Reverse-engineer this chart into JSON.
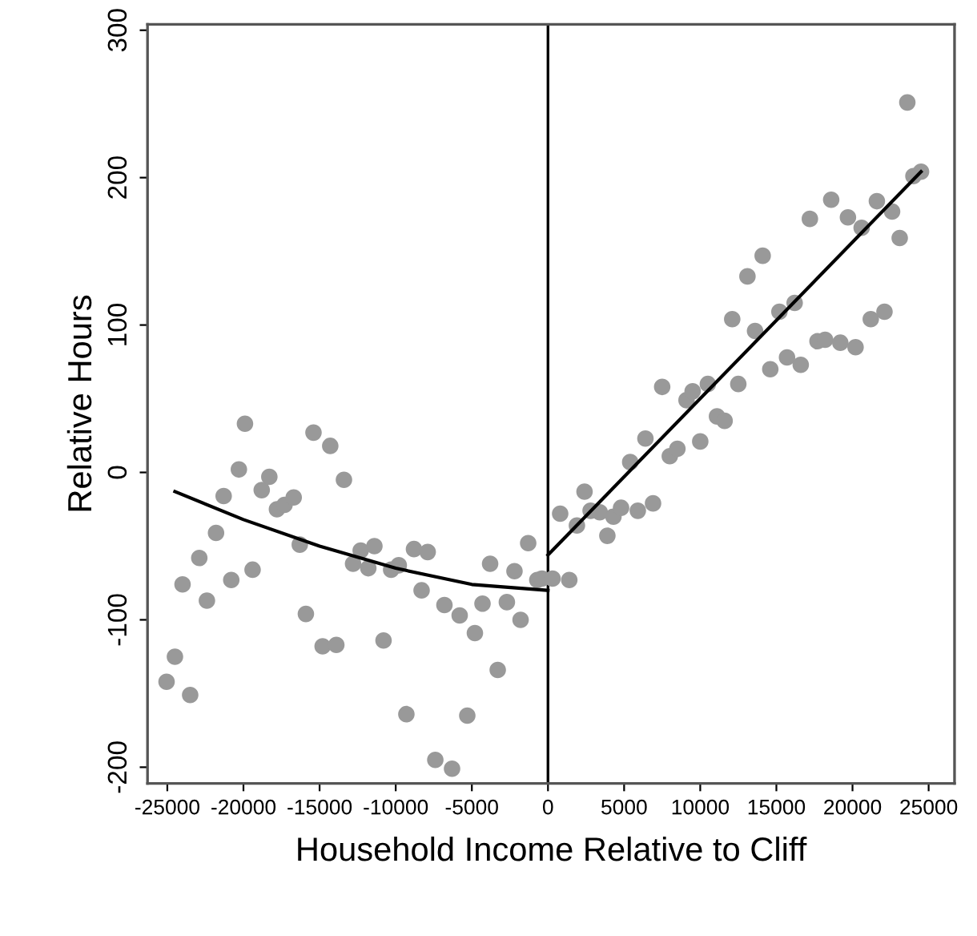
{
  "chart_data": {
    "type": "scatter",
    "xlabel": "Household Income Relative to Cliff",
    "ylabel": "Relative Hours",
    "xlim": [
      -26300,
      26700
    ],
    "ylim": [
      -211,
      304
    ],
    "xticks": [
      -25000,
      -20000,
      -15000,
      -10000,
      -5000,
      0,
      5000,
      10000,
      15000,
      20000,
      25000
    ],
    "yticks": [
      -200,
      -100,
      0,
      100,
      200,
      300
    ],
    "grid": false,
    "marker": "circle",
    "ref_lines": [
      {
        "axis": "x",
        "value": 0,
        "color": "#000000"
      }
    ],
    "series": [
      {
        "color": "#999999",
        "x": [
          -25050,
          -24500,
          -24000,
          -23500,
          -22900,
          -22400,
          -21800,
          -21300,
          -20800,
          -20300,
          -19900,
          -19400,
          -18800,
          -18300,
          -17800,
          -17300,
          -16700,
          -16300,
          -15900,
          -15400,
          -14800,
          -14300,
          -13900,
          -13400,
          -12800,
          -12300,
          -11800,
          -11400,
          -10800,
          -10300,
          -9800,
          -9300,
          -8800,
          -8300,
          -7900,
          -7400,
          -6800,
          -6300,
          -5800,
          -5300,
          -4800,
          -4300,
          -3800,
          -3300,
          -2700,
          -2200,
          -1800,
          -1300,
          -700,
          -400,
          300,
          800,
          1400,
          1900,
          2400,
          2800,
          3400,
          3900,
          4300,
          4800,
          5400,
          5900,
          6400,
          6900,
          7500,
          8000,
          8500,
          9100,
          9500,
          10000,
          10500,
          11100,
          11600,
          12100,
          12500,
          13100,
          13600,
          14100,
          14600,
          15200,
          15700,
          16200,
          16600,
          17200,
          17700,
          18200,
          18600,
          19200,
          19700,
          20200,
          20600,
          21200,
          21600,
          22100,
          22600,
          23100,
          23600,
          24000,
          24500
        ],
        "values": [
          -142,
          -125,
          -76,
          -151,
          -58,
          -87,
          -41,
          -16,
          -73,
          2,
          33,
          -66,
          -12,
          -3,
          -25,
          -22,
          -17,
          -49,
          -96,
          27,
          -118,
          18,
          -117,
          -5,
          -62,
          -53,
          -65,
          -50,
          -114,
          -66,
          -63,
          -164,
          -52,
          -80,
          -54,
          -195,
          -90,
          -201,
          -97,
          -165,
          -109,
          -89,
          -62,
          -134,
          -88,
          -67,
          -100,
          -48,
          -73,
          -72,
          -72,
          -28,
          -73,
          -36,
          -13,
          -26,
          -27,
          -43,
          -30,
          -24,
          7,
          -26,
          23,
          -21,
          58,
          11,
          16,
          49,
          55,
          21,
          60,
          38,
          35,
          104,
          60,
          133,
          96,
          147,
          70,
          109,
          78,
          115,
          73,
          172,
          89,
          90,
          185,
          88,
          173,
          85,
          166,
          104,
          184,
          109,
          177,
          159,
          251,
          201,
          204
        ]
      },
      {
        "type": "line",
        "color": "#000000",
        "marker": "none",
        "line_style": "solid",
        "x": [
          -24500,
          -20000,
          -15000,
          -10000,
          -5000,
          0
        ],
        "values": [
          -13,
          -32,
          -50,
          -65,
          -76,
          -80
        ]
      },
      {
        "type": "line",
        "color": "#000000",
        "marker": "none",
        "line_style": "solid",
        "x": [
          0,
          24500
        ],
        "values": [
          -56,
          204
        ]
      }
    ]
  }
}
